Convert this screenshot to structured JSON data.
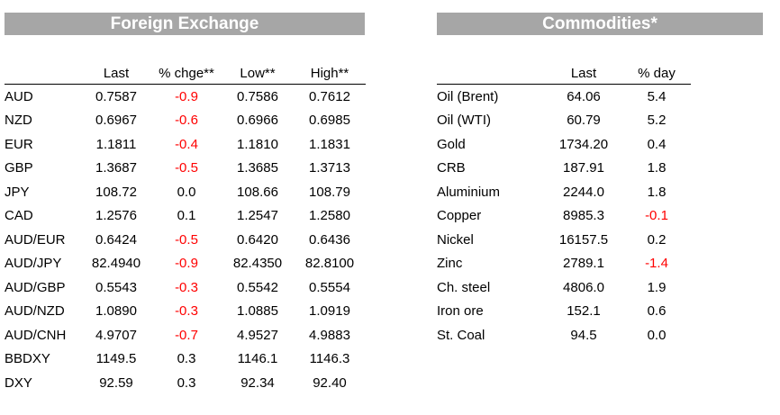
{
  "fx": {
    "title": "Foreign Exchange",
    "headers": [
      "",
      "Last",
      "% chge**",
      "Low**",
      "High**"
    ],
    "rows": [
      [
        "AUD",
        "0.7587",
        "-0.9",
        "0.7586",
        "0.7612"
      ],
      [
        "NZD",
        "0.6967",
        "-0.6",
        "0.6966",
        "0.6985"
      ],
      [
        "EUR",
        "1.1811",
        "-0.4",
        "1.1810",
        "1.1831"
      ],
      [
        "GBP",
        "1.3687",
        "-0.5",
        "1.3685",
        "1.3713"
      ],
      [
        "JPY",
        "108.72",
        "0.0",
        "108.66",
        "108.79"
      ],
      [
        "CAD",
        "1.2576",
        "0.1",
        "1.2547",
        "1.2580"
      ],
      [
        "AUD/EUR",
        "0.6424",
        "-0.5",
        "0.6420",
        "0.6436"
      ],
      [
        "AUD/JPY",
        "82.4940",
        "-0.9",
        "82.4350",
        "82.8100"
      ],
      [
        "AUD/GBP",
        "0.5543",
        "-0.3",
        "0.5542",
        "0.5554"
      ],
      [
        "AUD/NZD",
        "1.0890",
        "-0.3",
        "1.0885",
        "1.0919"
      ],
      [
        "AUD/CNH",
        "4.9707",
        "-0.7",
        "4.9527",
        "4.9883"
      ],
      [
        "BBDXY",
        "1149.5",
        "0.3",
        "1146.1",
        "1146.3"
      ],
      [
        "DXY",
        "92.59",
        "0.3",
        "92.34",
        "92.40"
      ]
    ]
  },
  "commodities": {
    "title": "Commodities*",
    "headers": [
      "",
      "Last",
      "% day"
    ],
    "rows": [
      [
        "Oil (Brent)",
        "64.06",
        "5.4"
      ],
      [
        "Oil (WTI)",
        "60.79",
        "5.2"
      ],
      [
        "Gold",
        "1734.20",
        "0.4"
      ],
      [
        "CRB",
        "187.91",
        "1.8"
      ],
      [
        "Aluminium",
        "2244.0",
        "1.8"
      ],
      [
        "Copper",
        "8985.3",
        "-0.1"
      ],
      [
        "Nickel",
        "16157.5",
        "0.2"
      ],
      [
        "Zinc",
        "2789.1",
        "-1.4"
      ],
      [
        "Ch. steel",
        "4806.0",
        "1.9"
      ],
      [
        "Iron ore",
        "152.1",
        "0.6"
      ],
      [
        "St. Coal",
        "94.5",
        "0.0"
      ]
    ]
  },
  "colors": {
    "banner": "#a6a6a6",
    "negative": "#ff0000"
  }
}
